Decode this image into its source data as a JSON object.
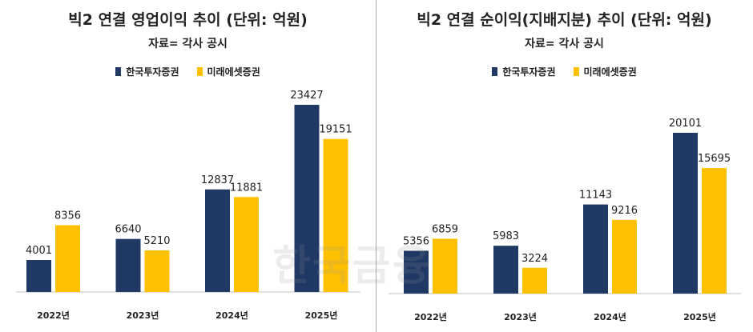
{
  "colors": {
    "series1": "#1f3864",
    "series2": "#ffc000",
    "divider": "#a9a9a9",
    "baseline": "#bfbfbf"
  },
  "watermark": "한국금융",
  "chart_data": [
    {
      "type": "bar",
      "title": "빅2 연결 영업이익 추이 (단위: 억원)",
      "subtitle": "자료= 각사 공시",
      "categories": [
        "2022년",
        "2023년",
        "2024년",
        "2025년"
      ],
      "series": [
        {
          "name": "한국투자증권",
          "values": [
            4001,
            6640,
            12837,
            23427
          ]
        },
        {
          "name": "미래에셋증권",
          "values": [
            8356,
            5210,
            11881,
            19151
          ]
        }
      ],
      "ylim": [
        0,
        23427
      ],
      "legend": "top-center",
      "grid": false
    },
    {
      "type": "bar",
      "title": "빅2 연결 순이익(지배지분) 추이 (단위: 억원)",
      "subtitle": "자료= 각사 공시",
      "categories": [
        "2022년",
        "2023년",
        "2024년",
        "2025년"
      ],
      "series": [
        {
          "name": "한국투자증권",
          "values": [
            5356,
            5983,
            11143,
            20101
          ]
        },
        {
          "name": "미래에셋증권",
          "values": [
            6859,
            3224,
            9216,
            15695
          ]
        }
      ],
      "ylim": [
        0,
        20101
      ],
      "legend": "top-center",
      "grid": false
    }
  ]
}
